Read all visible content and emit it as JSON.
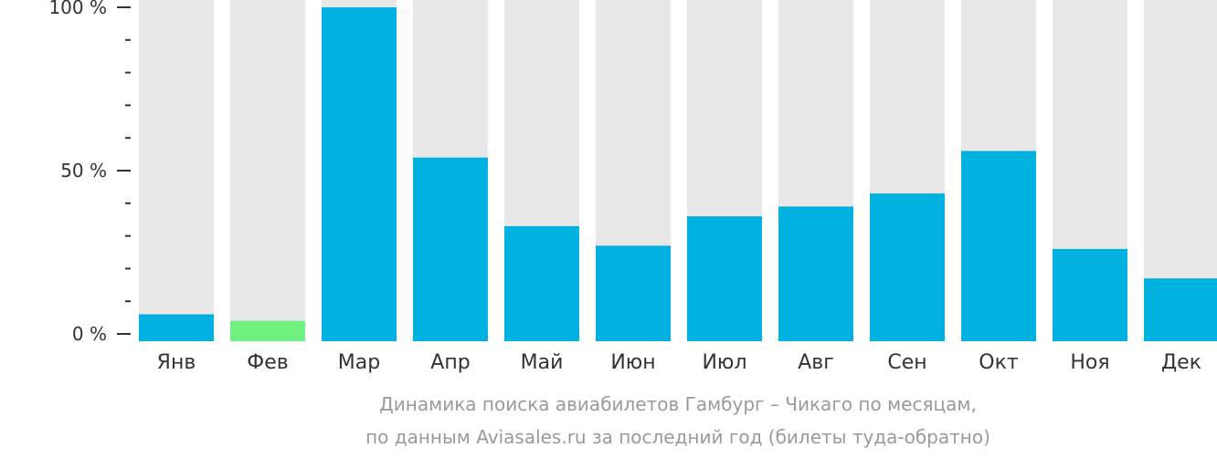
{
  "chart_data": {
    "type": "bar",
    "categories": [
      "Янв",
      "Фев",
      "Мар",
      "Апр",
      "Май",
      "Июн",
      "Июл",
      "Авг",
      "Сен",
      "Окт",
      "Ноя",
      "Дек"
    ],
    "values": [
      6,
      4,
      100,
      54,
      33,
      27,
      36,
      39,
      43,
      56,
      26,
      17
    ],
    "highlight_index": 1,
    "ylim": [
      0,
      100
    ],
    "yticks": [
      {
        "value": 0,
        "label": "0 %"
      },
      {
        "value": 50,
        "label": "50 %"
      },
      {
        "value": 100,
        "label": "100 %"
      }
    ],
    "minor_tick_step": 10,
    "grid": false,
    "colors": {
      "bar": "#00b0de",
      "highlight": "#6ff07f",
      "track": "#e8e8e8",
      "axis": "#333333",
      "caption": "#9a9a9a"
    }
  },
  "caption": {
    "line1": "Динамика поиска авиабилетов Гамбург – Чикаго по месяцам,",
    "line2": "по данным Aviasales.ru за последний год (билеты туда-обратно)"
  }
}
